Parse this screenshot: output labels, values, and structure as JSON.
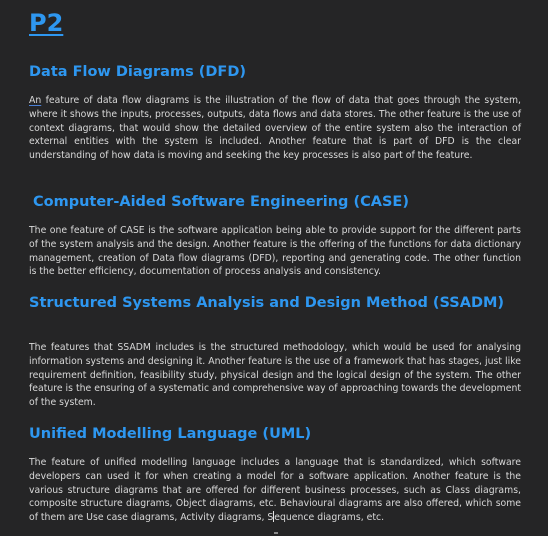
{
  "document": {
    "title": "P2",
    "sections": [
      {
        "heading": "Data Flow Diagrams (DFD)",
        "first_word": "An",
        "body": " feature of data flow diagrams is the illustration of the flow of data that goes through the system, where it shows the inputs, processes, outputs, data flows and data stores. The other feature is the use of context diagrams, that would show the detailed overview of the entire system also the interaction of external entities with the system is included. Another feature that is part of DFD is the clear understanding of how data is moving and seeking the key processes is also part of the feature."
      },
      {
        "heading": "Computer-Aided Software Engineering (CASE)",
        "body": "The one feature of CASE is the software application being able to provide support for the different parts of the system analysis and the design. Another feature is the offering of the functions for data dictionary management, creation of Data flow diagrams (DFD), reporting and generating code. The other function is the better efficiency, documentation of process analysis and consistency."
      },
      {
        "heading": "Structured Systems Analysis and Design Method (SSADM)",
        "body": "The features that SSADM includes is the structured methodology, which would be used for analysing information systems and designing it. Another feature is the use of a framework that has stages, just like requirement definition, feasibility study, physical design and the logical design of the system. The other feature is the ensuring of a systematic and comprehensive way of approaching towards the development of the system."
      },
      {
        "heading": "Unified Modelling Language (UML)",
        "body_before_caret": "The feature of unified modelling language includes a language that is standardized, which software developers can used it for when creating a model for a software application. Another feature is the various structure diagrams that are offered for different business processes, such as Class diagrams, composite structure diagrams, Object diagrams, etc. Behavioural diagrams are also offered, which some of them are Use case diagrams, Activity diagrams, S",
        "body_after_caret": "equence diagrams, etc."
      }
    ]
  }
}
